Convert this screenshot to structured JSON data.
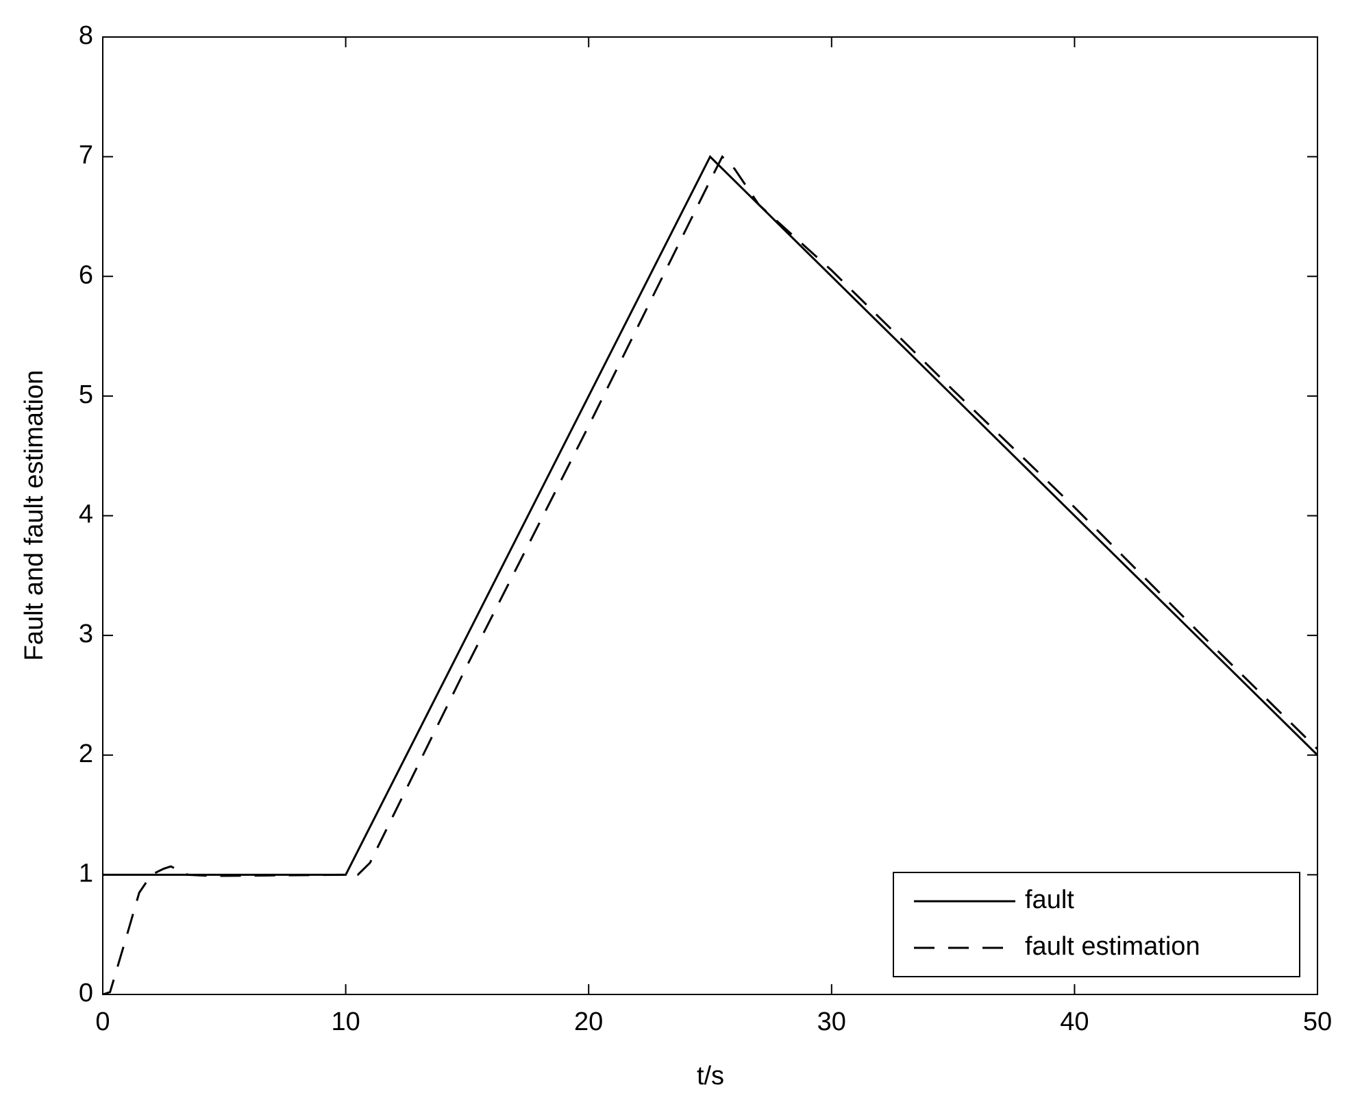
{
  "chart_data": {
    "type": "line",
    "xlabel": "t/s",
    "ylabel": "Fault and fault estimation",
    "xlim": [
      0,
      50
    ],
    "xticks": [
      0,
      10,
      20,
      30,
      40,
      50
    ],
    "ylim": [
      0,
      8
    ],
    "yticks": [
      0,
      1,
      2,
      3,
      4,
      5,
      6,
      7,
      8
    ],
    "grid": false,
    "legend": "lower right",
    "series": [
      {
        "name": "fault",
        "color": "#000000",
        "dash": "solid",
        "x": [
          0,
          10,
          25,
          50
        ],
        "values": [
          1,
          1,
          7,
          2
        ]
      },
      {
        "name": "fault estimation",
        "color": "#000000",
        "dash": "dashed",
        "x": [
          0,
          0.3,
          1,
          1.5,
          2,
          2.5,
          2.8,
          3.5,
          4.5,
          10,
          10.5,
          11,
          15,
          20,
          25,
          25.5,
          26,
          26.5,
          27,
          30,
          35,
          40,
          45,
          50
        ],
        "values": [
          0,
          0.02,
          0.5,
          0.85,
          1,
          1.05,
          1.07,
          1.0,
          0.99,
          1,
          1,
          1.1,
          2.75,
          4.75,
          6.8,
          7.0,
          6.9,
          6.75,
          6.6,
          6.05,
          5.05,
          4.07,
          3.05,
          2.05
        ]
      }
    ]
  }
}
